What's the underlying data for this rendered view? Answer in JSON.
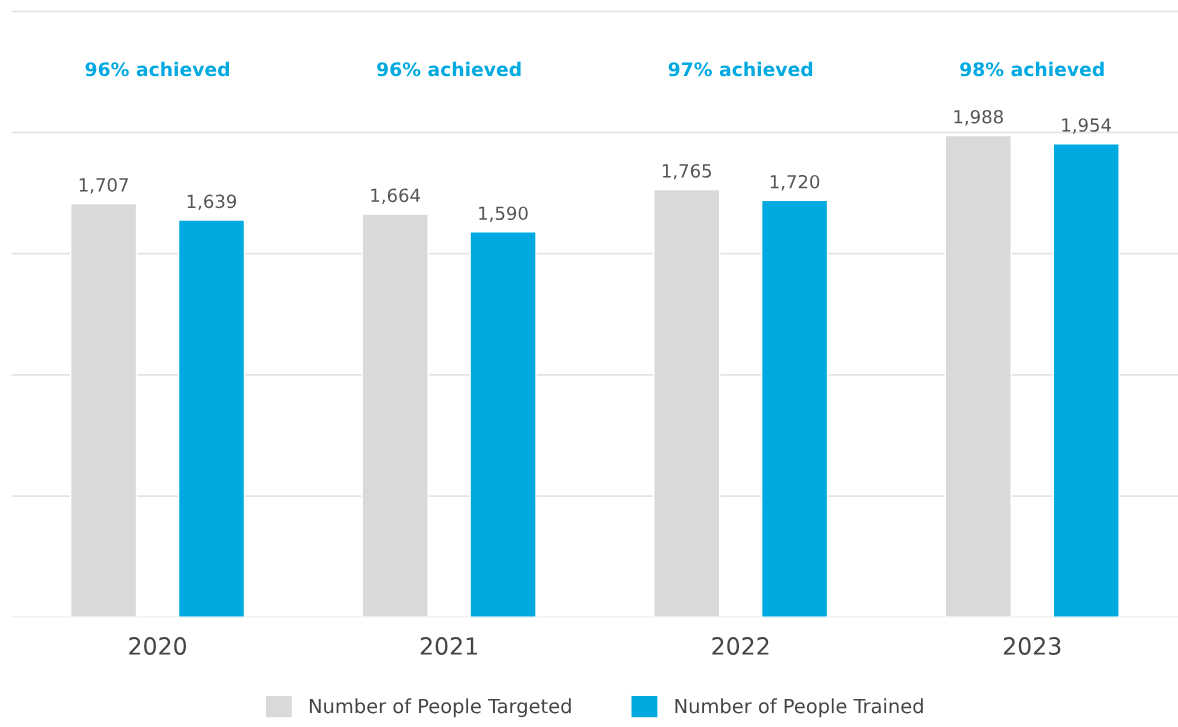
{
  "chart_data": {
    "type": "bar",
    "categories": [
      "2020",
      "2021",
      "2022",
      "2023"
    ],
    "series": [
      {
        "name": "Number of People Targeted",
        "color": "#d9d9d9",
        "values": [
          1707,
          1664,
          1765,
          1988
        ],
        "value_labels": [
          "1,707",
          "1,664",
          "1,765",
          "1,988"
        ]
      },
      {
        "name": "Number of People Trained",
        "color": "#00a9e0",
        "values": [
          1639,
          1590,
          1720,
          1954
        ],
        "value_labels": [
          "1,639",
          "1,590",
          "1,720",
          "1,954"
        ]
      }
    ],
    "tick_labels": "x",
    "grid": "y",
    "legend": "bottom",
    "annotations": [
      "96% achieved",
      "96% achieved",
      "97% achieved",
      "98% achieved"
    ]
  }
}
